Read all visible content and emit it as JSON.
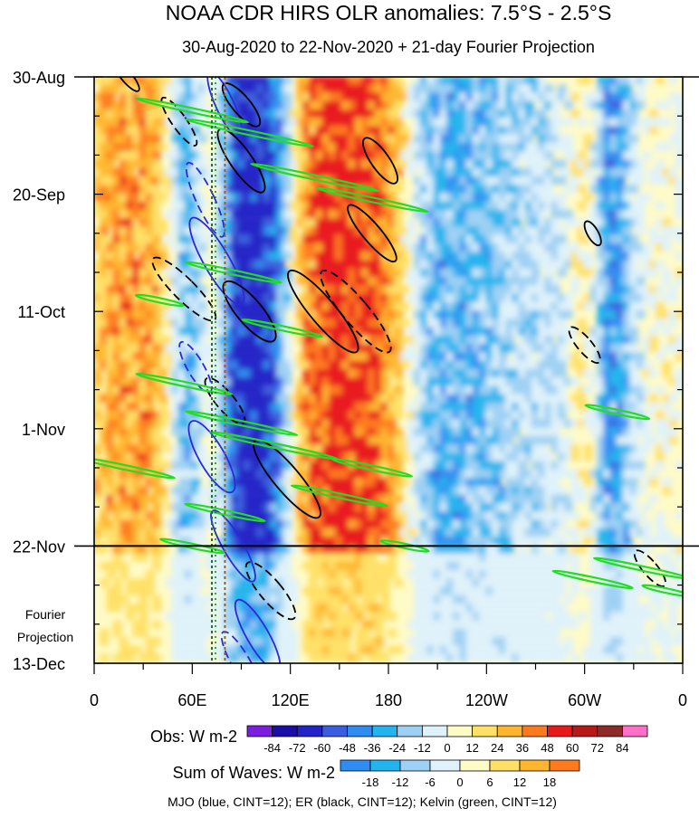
{
  "chart_data": {
    "type": "heatmap",
    "title": "NOAA CDR HIRS OLR anomalies: 7.5°S - 2.5°S",
    "subtitle": "30-Aug-2020 to 22-Nov-2020 + 21-day Fourier Projection",
    "xlabel": "",
    "ylabel": "",
    "x_ticks": [
      "0",
      "60E",
      "120E",
      "180",
      "120W",
      "60W",
      "0"
    ],
    "x_tick_longitudes": [
      0,
      60,
      120,
      180,
      240,
      300,
      360
    ],
    "y_ticks": [
      "30-Aug",
      "20-Sep",
      "11-Oct",
      "1-Nov",
      "22-Nov",
      "13-Dec"
    ],
    "y_tick_days": [
      0,
      21,
      42,
      63,
      84,
      105
    ],
    "xlim": [
      0,
      360
    ],
    "ylim_days": [
      0,
      105
    ],
    "observation_end_day": 84,
    "projection_label_line1": "Fourier",
    "projection_label_line2": "Projection",
    "reference_longitudes": [
      72,
      80
    ],
    "obs_colorbar": {
      "label": "Obs: W m-2",
      "levels": [
        "-84",
        "-72",
        "-60",
        "-48",
        "-36",
        "-24",
        "-12",
        "0",
        "12",
        "24",
        "36",
        "48",
        "60",
        "72",
        "84"
      ],
      "colors": [
        "#7a1fe0",
        "#1a0da8",
        "#2323c8",
        "#3b5ee0",
        "#2f8df2",
        "#22b4ef",
        "#9dd0f5",
        "#dff2fb",
        "#fffbc7",
        "#ffe066",
        "#ffb62e",
        "#ff7a1f",
        "#e8191c",
        "#b81818",
        "#8f2a2a",
        "#ff6ec7"
      ]
    },
    "waves_colorbar": {
      "label": "Sum of Waves: W m-2",
      "levels": [
        "-18",
        "-12",
        "-6",
        "0",
        "6",
        "12",
        "18"
      ],
      "colors": [
        "#2f8df2",
        "#22b4ef",
        "#9dd0f5",
        "#dff2fb",
        "#fffbc7",
        "#ffe066",
        "#ffb62e",
        "#ff7a1f"
      ]
    },
    "footnote": "MJO (blue, CINT=12); ER (black, CINT=12); Kelvin (green, CINT=12)",
    "wave_colors": {
      "MJO": "#2a2ad8",
      "ER": "#000000",
      "Kelvin": "#22dd22"
    },
    "cint": 12
  }
}
